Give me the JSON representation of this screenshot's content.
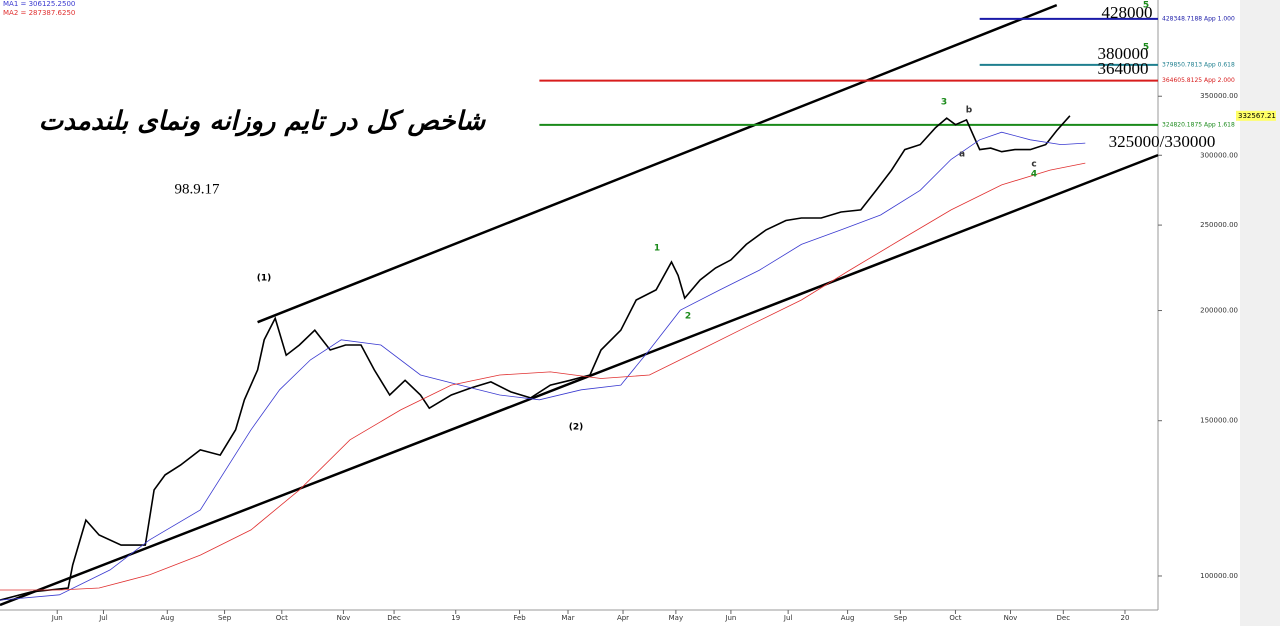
{
  "chart_data": {
    "type": "line",
    "title": "شاخص کل در تایم روزانه ونمای بلندمدت",
    "subtitle": "98.9.17",
    "log_scale": true,
    "xlim": [
      0,
      526
    ],
    "xticks": [
      {
        "value": 26,
        "label": "Jun"
      },
      {
        "value": 47,
        "label": "Jul"
      },
      {
        "value": 76,
        "label": "Aug"
      },
      {
        "value": 102,
        "label": "Sep"
      },
      {
        "value": 128,
        "label": "Oct"
      },
      {
        "value": 156,
        "label": "Nov"
      },
      {
        "value": 179,
        "label": "Dec"
      },
      {
        "value": 207,
        "label": "19"
      },
      {
        "value": 236,
        "label": "Feb"
      },
      {
        "value": 258,
        "label": "Mar"
      },
      {
        "value": 283,
        "label": "Apr"
      },
      {
        "value": 307,
        "label": "May"
      },
      {
        "value": 332,
        "label": "Jun"
      },
      {
        "value": 358,
        "label": "Jul"
      },
      {
        "value": 385,
        "label": "Aug"
      },
      {
        "value": 409,
        "label": "Sep"
      },
      {
        "value": 434,
        "label": "Oct"
      },
      {
        "value": 459,
        "label": "Nov"
      },
      {
        "value": 483,
        "label": "Dec"
      },
      {
        "value": 511,
        "label": "20"
      }
    ],
    "ylim": [
      91500,
      450000
    ],
    "yticks": [
      {
        "value": 100000,
        "label": "100000.00"
      },
      {
        "value": 150000,
        "label": "150000.00"
      },
      {
        "value": 200000,
        "label": "200000.00"
      },
      {
        "value": 250000,
        "label": "250000.00"
      },
      {
        "value": 300000,
        "label": "300000.00"
      },
      {
        "value": 350000,
        "label": "350000.00"
      }
    ],
    "last_price": {
      "value": 332567.21,
      "label": "332567.21"
    },
    "series": [
      {
        "color": "#000000",
        "x": [
          0,
          14,
          31,
          33,
          39,
          45,
          55,
          66,
          70,
          75,
          82,
          91,
          100,
          107,
          111,
          117,
          120,
          125,
          130,
          136,
          143,
          150,
          157,
          164,
          170,
          177,
          184,
          191,
          195,
          205,
          214,
          223,
          232,
          241,
          250,
          259,
          268,
          273,
          282,
          289,
          298,
          305,
          308,
          311,
          318,
          325,
          332,
          339,
          348,
          357,
          364,
          373,
          382,
          391,
          398,
          405,
          411,
          418,
          425,
          430,
          434,
          439,
          442,
          445,
          450,
          455,
          461,
          468,
          475,
          480,
          486
        ],
        "values": [
          93900,
          95900,
          96900,
          102900,
          115700,
          111300,
          108400,
          108400,
          125200,
          130200,
          133600,
          139000,
          137100,
          146500,
          158400,
          171300,
          185300,
          196000,
          178000,
          182800,
          190000,
          180400,
          182800,
          182800,
          171300,
          160400,
          166700,
          160400,
          155000,
          160400,
          163400,
          166000,
          161700,
          159200,
          164600,
          166700,
          169000,
          180400,
          190000,
          205600,
          211100,
          227000,
          219200,
          206600,
          216600,
          223500,
          228300,
          237700,
          246900,
          253000,
          254700,
          254700,
          258700,
          260100,
          273800,
          288600,
          304500,
          308500,
          322500,
          330600,
          324900,
          329000,
          316500,
          304500,
          305700,
          302800,
          304500,
          304500,
          308500,
          320000,
          332600
        ]
      },
      {
        "name": "MA1 = 306125.2500",
        "color": "#3a3ad0",
        "x": [
          0,
          27,
          50,
          68,
          91,
          114,
          127,
          141,
          155,
          173,
          191,
          209,
          227,
          245,
          264,
          282,
          295,
          309,
          327,
          345,
          364,
          382,
          400,
          418,
          432,
          445,
          455,
          468,
          482,
          493
        ],
        "values": [
          93900,
          95200,
          101600,
          109900,
          118800,
          146500,
          162600,
          175800,
          185300,
          182800,
          169000,
          164600,
          160400,
          158400,
          162600,
          164600,
          180400,
          200200,
          211100,
          222300,
          237700,
          246900,
          256700,
          273800,
          296800,
          312400,
          318600,
          312400,
          308500,
          309700
        ]
      },
      {
        "name": "MA2 = 287387.6250",
        "color": "#e03030",
        "x": [
          0,
          27,
          45,
          68,
          91,
          114,
          136,
          159,
          182,
          205,
          227,
          250,
          273,
          295,
          318,
          341,
          364,
          386,
          409,
          432,
          455,
          477,
          493
        ],
        "values": [
          96400,
          96400,
          96900,
          100300,
          105600,
          112800,
          125200,
          142700,
          154300,
          164600,
          169000,
          170400,
          167500,
          169000,
          180400,
          192700,
          205600,
          222300,
          240500,
          260100,
          277700,
          288600,
          293900
        ]
      }
    ],
    "levels": [
      {
        "value": 428348.7188,
        "label": "428348.7188 App 1.000",
        "color": "#1a1aa8",
        "x": [
          445,
          526
        ]
      },
      {
        "value": 379850.7813,
        "label": "379850.7813 App 0.618",
        "color": "#1f7f8f",
        "x": [
          445,
          526
        ]
      },
      {
        "value": 364605.8125,
        "label": "364605.8125 App 2.000",
        "color": "#d81c1c",
        "x": [
          245,
          526
        ]
      },
      {
        "value": 324820.1875,
        "label": "324820.1875 App 1.618",
        "color": "#1a8a1a",
        "x": [
          245,
          526
        ]
      }
    ],
    "trendlines": [
      {
        "x": [
          117,
          480
        ],
        "values": [
          194000,
          444000
        ]
      },
      {
        "x": [
          0,
          526
        ],
        "values": [
          92700,
          300100
        ]
      }
    ],
    "wave_labels": [
      "(1)",
      "(2)",
      "1",
      "2",
      "3",
      "4",
      "5",
      "5",
      "a",
      "b",
      "c"
    ],
    "targets": [
      "428000",
      "380000",
      "364000",
      "325000/330000"
    ]
  }
}
